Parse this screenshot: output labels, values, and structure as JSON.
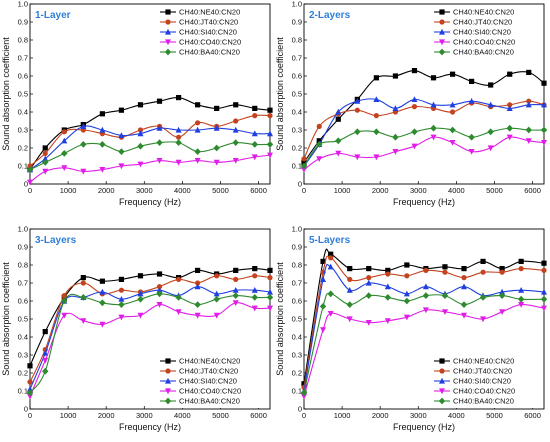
{
  "colors": {
    "ne": "#000000",
    "jt": "#c4431f",
    "si": "#1f3fe0",
    "co": "#e11ee8",
    "ba": "#2e8a2e"
  },
  "chart_data": [
    {
      "type": "line",
      "title": "1-Layer",
      "xlabel": "Frequency (Hz)",
      "ylabel": "Sound absorption coefficient",
      "xlim": [
        0,
        6300
      ],
      "ylim": [
        0,
        1.0
      ],
      "xticks": [
        0,
        1000,
        2000,
        3000,
        4000,
        5000,
        6000
      ],
      "yticks": [
        0,
        0.1,
        0.2,
        0.3,
        0.4,
        0.5,
        0.6,
        0.7,
        0.8,
        0.9,
        1.0
      ],
      "legend_position": "top-right",
      "x": [
        0,
        400,
        900,
        1400,
        1900,
        2400,
        2900,
        3400,
        3900,
        4400,
        4900,
        5400,
        5900,
        6300
      ],
      "series": [
        {
          "name": "CH40:NE40:CN20",
          "color_key": "ne",
          "marker": "square",
          "values": [
            0.08,
            0.2,
            0.3,
            0.33,
            0.39,
            0.41,
            0.44,
            0.46,
            0.48,
            0.44,
            0.42,
            0.44,
            0.42,
            0.41
          ]
        },
        {
          "name": "CH40:JT40:CN20",
          "color_key": "jt",
          "marker": "circle",
          "values": [
            0.1,
            0.17,
            0.29,
            0.3,
            0.28,
            0.26,
            0.3,
            0.32,
            0.26,
            0.34,
            0.32,
            0.35,
            0.38,
            0.38
          ]
        },
        {
          "name": "CH40:SI40:CN20",
          "color_key": "si",
          "marker": "triangle",
          "values": [
            0.08,
            0.14,
            0.24,
            0.32,
            0.3,
            0.27,
            0.28,
            0.31,
            0.3,
            0.3,
            0.31,
            0.3,
            0.28,
            0.28
          ]
        },
        {
          "name": "CH40:CO40:CN20",
          "color_key": "co",
          "marker": "triangle-down",
          "values": [
            0.01,
            0.07,
            0.09,
            0.07,
            0.08,
            0.1,
            0.11,
            0.13,
            0.12,
            0.13,
            0.12,
            0.13,
            0.15,
            0.16
          ]
        },
        {
          "name": "CH40:BA40:CN20",
          "color_key": "ba",
          "marker": "diamond",
          "values": [
            0.08,
            0.12,
            0.17,
            0.22,
            0.22,
            0.18,
            0.21,
            0.23,
            0.23,
            0.18,
            0.2,
            0.23,
            0.22,
            0.22
          ]
        }
      ]
    },
    {
      "type": "line",
      "title": "2-Layers",
      "xlabel": "Frequency (Hz)",
      "ylabel": "Sound absorption coefficient",
      "xlim": [
        0,
        6300
      ],
      "ylim": [
        0,
        1.0
      ],
      "xticks": [
        0,
        1000,
        2000,
        3000,
        4000,
        5000,
        6000
      ],
      "yticks": [
        0,
        0.1,
        0.2,
        0.3,
        0.4,
        0.5,
        0.6,
        0.7,
        0.8,
        0.9,
        1.0
      ],
      "legend_position": "top-right",
      "x": [
        0,
        400,
        900,
        1400,
        1900,
        2400,
        2900,
        3400,
        3900,
        4400,
        4900,
        5400,
        5900,
        6300
      ],
      "series": [
        {
          "name": "CH40:NE40:CN20",
          "color_key": "ne",
          "marker": "square",
          "values": [
            0.12,
            0.24,
            0.36,
            0.47,
            0.59,
            0.6,
            0.63,
            0.59,
            0.61,
            0.57,
            0.55,
            0.61,
            0.62,
            0.56
          ]
        },
        {
          "name": "CH40:JT40:CN20",
          "color_key": "jt",
          "marker": "circle",
          "values": [
            0.14,
            0.32,
            0.39,
            0.41,
            0.38,
            0.4,
            0.43,
            0.42,
            0.4,
            0.45,
            0.43,
            0.44,
            0.46,
            0.44
          ]
        },
        {
          "name": "CH40:SI40:CN20",
          "color_key": "si",
          "marker": "triangle",
          "values": [
            0.1,
            0.22,
            0.4,
            0.46,
            0.47,
            0.42,
            0.47,
            0.44,
            0.44,
            0.46,
            0.44,
            0.42,
            0.44,
            0.44
          ]
        },
        {
          "name": "CH40:CO40:CN20",
          "color_key": "co",
          "marker": "triangle-down",
          "values": [
            0.08,
            0.14,
            0.17,
            0.15,
            0.15,
            0.18,
            0.21,
            0.26,
            0.23,
            0.18,
            0.2,
            0.26,
            0.24,
            0.23
          ]
        },
        {
          "name": "CH40:BA40:CN20",
          "color_key": "ba",
          "marker": "diamond",
          "values": [
            0.1,
            0.22,
            0.24,
            0.29,
            0.29,
            0.26,
            0.29,
            0.31,
            0.3,
            0.26,
            0.29,
            0.31,
            0.3,
            0.3
          ]
        }
      ]
    },
    {
      "type": "line",
      "title": "3-Layers",
      "xlabel": "Frequency (Hz)",
      "ylabel": "Sound absorption coefficient",
      "xlim": [
        0,
        6300
      ],
      "ylim": [
        0,
        1.0
      ],
      "xticks": [
        0,
        1000,
        2000,
        3000,
        4000,
        5000,
        6000
      ],
      "yticks": [
        0,
        0.1,
        0.2,
        0.3,
        0.4,
        0.5,
        0.6,
        0.7,
        0.8,
        0.9,
        1.0
      ],
      "legend_position": "bottom-right",
      "x": [
        0,
        400,
        900,
        1400,
        1900,
        2400,
        2900,
        3400,
        3900,
        4400,
        4900,
        5400,
        5900,
        6300
      ],
      "series": [
        {
          "name": "CH40:NE40:CN20",
          "color_key": "ne",
          "marker": "square",
          "values": [
            0.24,
            0.43,
            0.62,
            0.73,
            0.71,
            0.72,
            0.74,
            0.75,
            0.73,
            0.77,
            0.75,
            0.77,
            0.78,
            0.77
          ]
        },
        {
          "name": "CH40:JT40:CN20",
          "color_key": "jt",
          "marker": "circle",
          "values": [
            0.15,
            0.33,
            0.63,
            0.7,
            0.64,
            0.66,
            0.65,
            0.68,
            0.72,
            0.7,
            0.74,
            0.72,
            0.74,
            0.73
          ]
        },
        {
          "name": "CH40:SI40:CN20",
          "color_key": "si",
          "marker": "triangle",
          "values": [
            0.11,
            0.31,
            0.6,
            0.62,
            0.65,
            0.61,
            0.64,
            0.66,
            0.63,
            0.68,
            0.64,
            0.66,
            0.66,
            0.65
          ]
        },
        {
          "name": "CH40:CO40:CN20",
          "color_key": "co",
          "marker": "triangle-down",
          "values": [
            0.07,
            0.27,
            0.52,
            0.49,
            0.47,
            0.51,
            0.52,
            0.58,
            0.54,
            0.52,
            0.52,
            0.59,
            0.56,
            0.56
          ]
        },
        {
          "name": "CH40:BA40:CN20",
          "color_key": "ba",
          "marker": "diamond",
          "values": [
            0.09,
            0.21,
            0.6,
            0.62,
            0.59,
            0.58,
            0.61,
            0.64,
            0.62,
            0.58,
            0.61,
            0.63,
            0.62,
            0.62
          ]
        }
      ]
    },
    {
      "type": "line",
      "title": "5-Layers",
      "xlabel": "Frequency (Hz)",
      "ylabel": "Sound absorption coefficient",
      "xlim": [
        0,
        6300
      ],
      "ylim": [
        0,
        1.0
      ],
      "xticks": [
        0,
        1000,
        2000,
        3000,
        4000,
        5000,
        6000
      ],
      "yticks": [
        0,
        0.1,
        0.2,
        0.3,
        0.4,
        0.5,
        0.6,
        0.7,
        0.8,
        0.9,
        1.0
      ],
      "legend_position": "bottom-right",
      "x": [
        0,
        500,
        700,
        1200,
        1700,
        2200,
        2700,
        3200,
        3700,
        4200,
        4700,
        5200,
        5700,
        6300
      ],
      "series": [
        {
          "name": "CH40:NE40:CN20",
          "color_key": "ne",
          "marker": "square",
          "values": [
            0.14,
            0.82,
            0.86,
            0.78,
            0.78,
            0.77,
            0.8,
            0.78,
            0.79,
            0.78,
            0.82,
            0.78,
            0.82,
            0.81
          ]
        },
        {
          "name": "CH40:JT40:CN20",
          "color_key": "jt",
          "marker": "circle",
          "values": [
            0.12,
            0.76,
            0.84,
            0.72,
            0.73,
            0.75,
            0.74,
            0.77,
            0.76,
            0.73,
            0.76,
            0.76,
            0.78,
            0.77
          ]
        },
        {
          "name": "CH40:SI40:CN20",
          "color_key": "si",
          "marker": "triangle",
          "values": [
            0.1,
            0.72,
            0.79,
            0.66,
            0.7,
            0.68,
            0.64,
            0.68,
            0.64,
            0.68,
            0.63,
            0.65,
            0.66,
            0.65
          ]
        },
        {
          "name": "CH40:CO40:CN20",
          "color_key": "co",
          "marker": "triangle-down",
          "values": [
            0.07,
            0.44,
            0.53,
            0.5,
            0.48,
            0.49,
            0.51,
            0.55,
            0.54,
            0.52,
            0.5,
            0.54,
            0.58,
            0.56
          ]
        },
        {
          "name": "CH40:BA40:CN20",
          "color_key": "ba",
          "marker": "diamond",
          "values": [
            0.09,
            0.57,
            0.64,
            0.58,
            0.63,
            0.62,
            0.6,
            0.63,
            0.63,
            0.58,
            0.62,
            0.63,
            0.61,
            0.61
          ]
        }
      ]
    }
  ]
}
